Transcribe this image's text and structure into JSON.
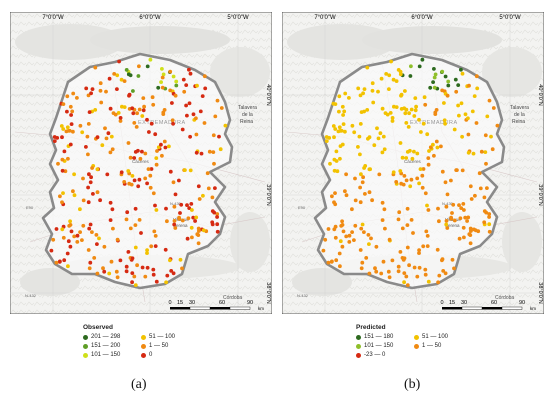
{
  "panels": [
    {
      "id": "a",
      "caption": "(a)",
      "legend_title": "Observed",
      "legend": [
        {
          "label": "201 — 298",
          "color": "#2d6a1f"
        },
        {
          "label": "51 — 100",
          "color": "#f2c200"
        },
        {
          "label": "151 — 200",
          "color": "#5f9e27"
        },
        {
          "label": "1 — 50",
          "color": "#f08a12"
        },
        {
          "label": "101 — 150",
          "color": "#cfe01a"
        },
        {
          "label": "0",
          "color": "#d62a12"
        }
      ]
    },
    {
      "id": "b",
      "caption": "(b)",
      "legend_title": "Predicted",
      "legend": [
        {
          "label": "151 — 180",
          "color": "#2d6a1f"
        },
        {
          "label": "51 — 100",
          "color": "#f2c200"
        },
        {
          "label": "101 — 150",
          "color": "#8fbf2a"
        },
        {
          "label": "1 — 50",
          "color": "#f08a12"
        },
        {
          "label": "-23 — 0",
          "color": "#d62a12"
        }
      ]
    }
  ],
  "graticule": {
    "lon_labels": [
      "7°0'0\"W",
      "6°0'0\"W",
      "5°0'0\"W"
    ],
    "lat_labels": [
      "40°0'0\"N",
      "39°0'0\"N",
      "38°0'0\"N"
    ]
  },
  "scale_bar": {
    "ticks": [
      "0",
      "15",
      "30",
      "60",
      "90"
    ],
    "unit": "km"
  },
  "place_labels": {
    "talavera_line1": "Talavera",
    "talavera_line2": "de la",
    "talavera_line3": "Reina",
    "villanueva_line1": "Villanue",
    "villanueva_line2": "Serena",
    "extremadura": "EXTREMADURA",
    "caceres": "Cáceres",
    "cordoba": "Córdoba",
    "road_n432": "N-432",
    "road_n430": "N-430",
    "road_e90": "E90",
    "road_e803": "E-803",
    "road_n433": "N-433"
  }
}
